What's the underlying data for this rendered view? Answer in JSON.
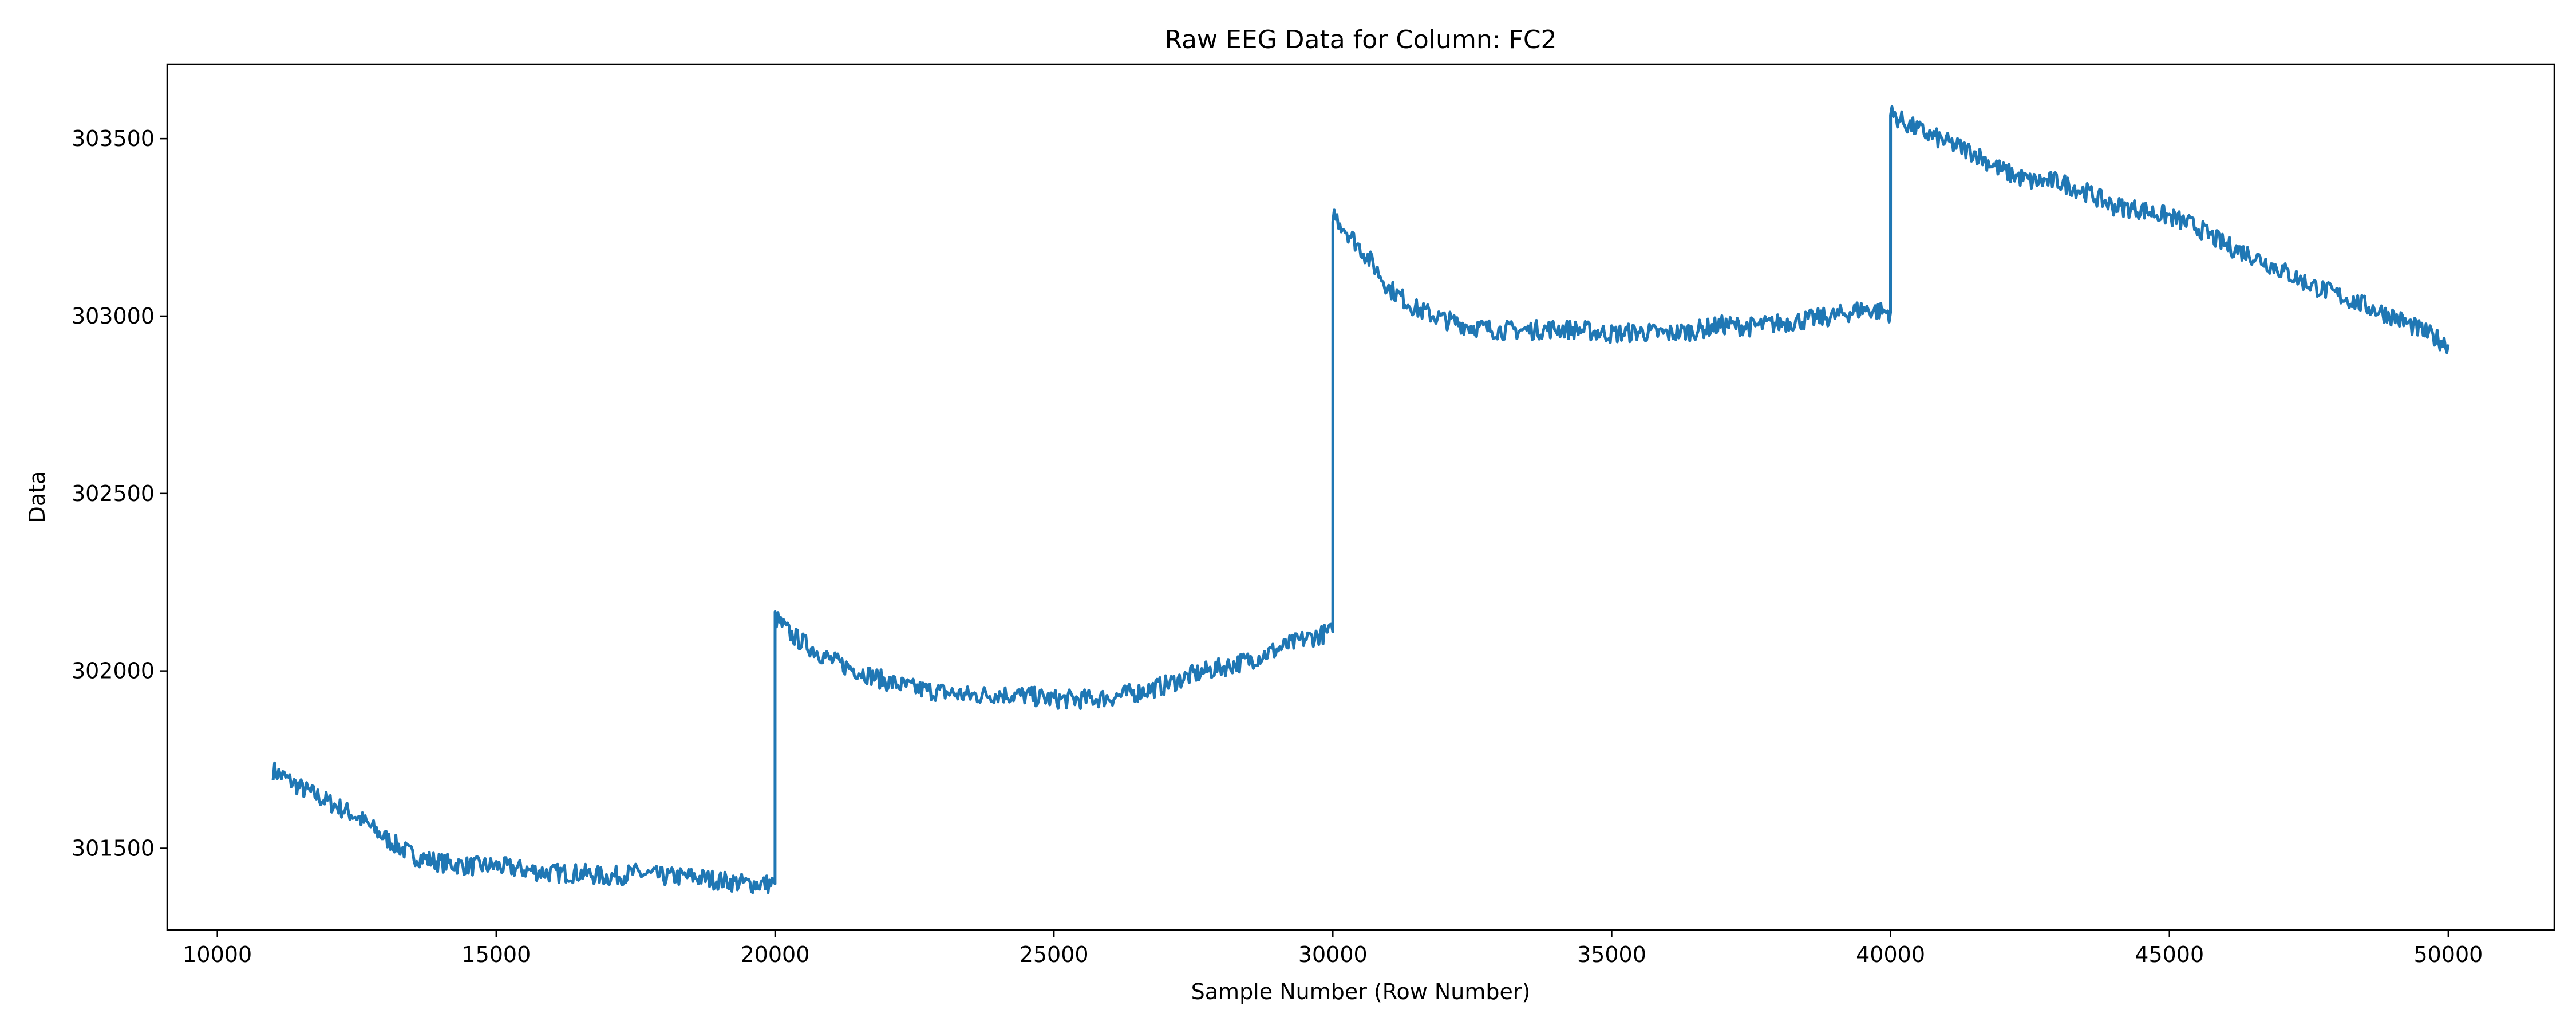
{
  "chart_data": {
    "type": "line",
    "title": "Raw EEG Data for Column: FC2",
    "xlabel": "Sample Number (Row Number)",
    "ylabel": "Data",
    "xlim": [
      9100,
      51900
    ],
    "ylim": [
      301270,
      303710
    ],
    "x_ticks": [
      10000,
      15000,
      20000,
      25000,
      30000,
      35000,
      40000,
      45000,
      50000
    ],
    "y_ticks": [
      301500,
      302000,
      302500,
      303000,
      303500
    ],
    "grid": false,
    "legend": "none",
    "series": [
      {
        "color": "#1f77b4",
        "x": [
          11000,
          11500,
          12000,
          12500,
          13000,
          13500,
          14000,
          14500,
          15000,
          15500,
          16000,
          16500,
          17000,
          17500,
          18000,
          18500,
          19000,
          19500,
          19999,
          20000,
          20300,
          20700,
          21000,
          21500,
          22000,
          22500,
          23000,
          23500,
          24000,
          24500,
          25000,
          25500,
          26000,
          26500,
          27000,
          27500,
          28000,
          28500,
          29000,
          29500,
          29999,
          30000,
          30300,
          30700,
          31000,
          31500,
          32000,
          32500,
          33000,
          33500,
          34000,
          34500,
          35000,
          35500,
          36000,
          36500,
          37000,
          37500,
          38000,
          38500,
          39000,
          39500,
          39999,
          40000,
          40300,
          40700,
          41000,
          41500,
          42000,
          42500,
          43000,
          43500,
          44000,
          44500,
          45000,
          45500,
          46000,
          46500,
          47000,
          47500,
          48000,
          48500,
          49000,
          49500,
          50000
        ],
        "y": [
          301720,
          301670,
          301630,
          301590,
          301530,
          301480,
          301460,
          301450,
          301450,
          301440,
          301430,
          301430,
          301420,
          301430,
          301420,
          301420,
          301410,
          301400,
          301400,
          302150,
          302100,
          302060,
          302030,
          302000,
          301970,
          301950,
          301940,
          301930,
          301935,
          301930,
          301920,
          301920,
          301925,
          301940,
          301960,
          301990,
          302010,
          302030,
          302060,
          302090,
          302110,
          303290,
          303230,
          303150,
          303080,
          303020,
          302990,
          302970,
          302960,
          302960,
          302965,
          302960,
          302950,
          302955,
          302950,
          302960,
          302975,
          302970,
          302980,
          302990,
          303000,
          303020,
          303010,
          303570,
          303540,
          303510,
          303490,
          303460,
          303410,
          303380,
          303380,
          303350,
          303310,
          303300,
          303280,
          303250,
          303200,
          303170,
          303130,
          303090,
          303060,
          303030,
          303000,
          302960,
          302920
        ]
      }
    ]
  }
}
